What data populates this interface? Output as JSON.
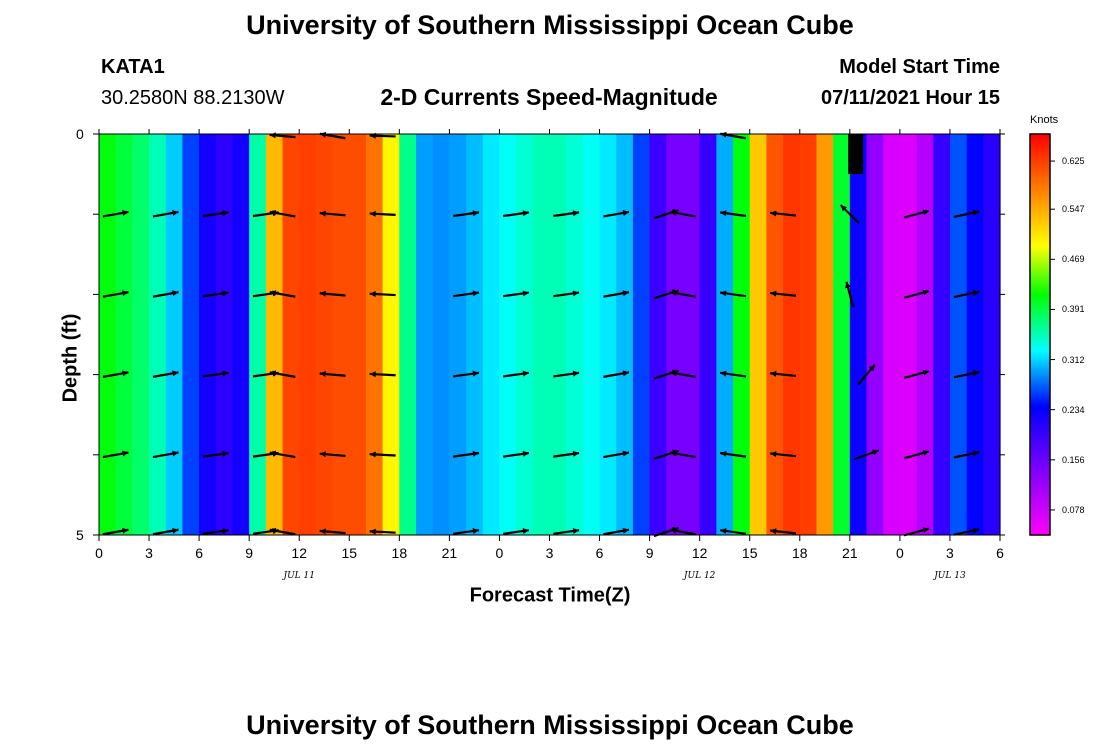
{
  "page_title": "University of Southern Mississippi Ocean Cube",
  "footer_title": "University of Southern Mississippi Ocean Cube",
  "station": {
    "id": "KATA1",
    "coords": "30.2580N  88.2130W"
  },
  "model": {
    "label": "Model Start Time",
    "time": "07/11/2021 Hour 15"
  },
  "chart_data": {
    "type": "heatmap",
    "title": "2-D Currents Speed-Magnitude",
    "xlabel": "Forecast Time(Z)",
    "ylabel": "Depth (ft)",
    "x_tick_labels": [
      "0",
      "3",
      "6",
      "9",
      "12",
      "15",
      "18",
      "21",
      "0",
      "3",
      "6",
      "9",
      "12",
      "15",
      "18",
      "21",
      "0",
      "3",
      "6"
    ],
    "x_hours": [
      0,
      3,
      6,
      9,
      12,
      15,
      18,
      21,
      24,
      27,
      30,
      33,
      36,
      39,
      42,
      45,
      48,
      51,
      54
    ],
    "xlim": [
      0,
      54
    ],
    "y_tick_labels": [
      "0",
      "5"
    ],
    "ylim": [
      0,
      5
    ],
    "date_labels": [
      {
        "text": "JUL 11",
        "hour": 12
      },
      {
        "text": "JUL 12",
        "hour": 36
      },
      {
        "text": "JUL 13",
        "hour": 51
      }
    ],
    "colorbar": {
      "title": "Knots",
      "ticks": [
        "0.625",
        "0.547",
        "0.469",
        "0.391",
        "0.312",
        "0.234",
        "0.156",
        "0.078"
      ],
      "tick_values": [
        0.625,
        0.547,
        0.469,
        0.391,
        0.312,
        0.234,
        0.156,
        0.078
      ],
      "range": [
        0.06,
        0.65
      ]
    },
    "speed_by_hour": [
      0.42,
      0.4,
      0.39,
      0.37,
      0.34,
      0.29,
      0.25,
      0.22,
      0.21,
      0.26,
      0.46,
      0.6,
      0.61,
      0.61,
      0.6,
      0.6,
      0.6,
      0.55,
      0.43,
      0.31,
      0.29,
      0.3,
      0.3,
      0.32,
      0.33,
      0.34,
      0.35,
      0.36,
      0.35,
      0.34,
      0.33,
      0.32,
      0.3,
      0.24,
      0.17,
      0.15,
      0.17,
      0.25,
      0.36,
      0.46,
      0.58,
      0.61,
      0.62,
      0.6,
      0.5,
      0.3,
      0.18,
      0.1,
      0.08,
      0.09,
      0.14,
      0.28,
      0.27,
      0.23,
      0.21
    ],
    "arrow_depths": [
      1,
      2,
      3,
      4,
      5
    ],
    "arrows": [
      {
        "hour": 1,
        "deg": -10
      },
      {
        "hour": 4,
        "deg": -10
      },
      {
        "hour": 7,
        "deg": -8
      },
      {
        "hour": 10,
        "deg": -8
      },
      {
        "hour": 11,
        "deg": 190
      },
      {
        "hour": 14,
        "deg": 185
      },
      {
        "hour": 17,
        "deg": 183
      },
      {
        "hour": 22,
        "deg": -8
      },
      {
        "hour": 25,
        "deg": -8
      },
      {
        "hour": 28,
        "deg": -8
      },
      {
        "hour": 31,
        "deg": -10
      },
      {
        "hour": 34,
        "deg": -18
      },
      {
        "hour": 35,
        "deg": 190
      },
      {
        "hour": 38,
        "deg": 188
      },
      {
        "hour": 41,
        "deg": 186
      },
      {
        "hour": 49,
        "deg": -15
      },
      {
        "hour": 52,
        "deg": -12
      }
    ],
    "special_arrows": [
      {
        "hour": 45,
        "depth": 1,
        "deg": 225
      },
      {
        "hour": 45,
        "depth": 2,
        "deg": 255
      },
      {
        "hour": 46,
        "depth": 3,
        "deg": -50
      },
      {
        "hour": 46,
        "depth": 4,
        "deg": -20
      }
    ],
    "top_arrows": [
      {
        "hour": 11,
        "deg": 185
      },
      {
        "hour": 14,
        "deg": 190
      },
      {
        "hour": 17,
        "deg": 182
      },
      {
        "hour": 38,
        "deg": 190
      }
    ],
    "masked": {
      "hour_start": 44.9,
      "hour_end": 45.8,
      "depth_start": 0,
      "depth_end": 0.5
    }
  }
}
